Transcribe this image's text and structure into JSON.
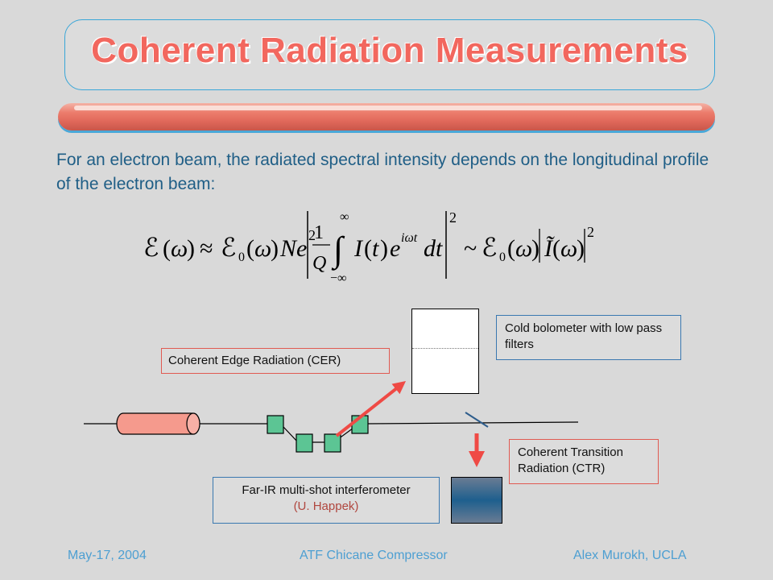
{
  "title": "Coherent Radiation Measurements",
  "intro": "For an electron beam, the radiated spectral intensity depends on the longitudinal profile of the electron beam:",
  "labels": {
    "cer": "Coherent Edge Radiation (CER)",
    "bolometer": "Cold bolometer with low pass filters",
    "ctr": "Coherent Transition Radiation (CTR)",
    "interferometer": "Far-IR multi-shot interferometer",
    "interferometer_credit": "(U. Happek)"
  },
  "footer": {
    "date": "May-17, 2004",
    "center": "ATF Chicane Compressor",
    "author": "Alex Murokh, UCLA"
  },
  "colors": {
    "title": "#f2675e",
    "intro_text": "#1f5e86",
    "footer_text": "#4d9fd2",
    "arrow": "#ef4a45",
    "magnet": "#5cc594",
    "gun": "#f59a8d"
  }
}
